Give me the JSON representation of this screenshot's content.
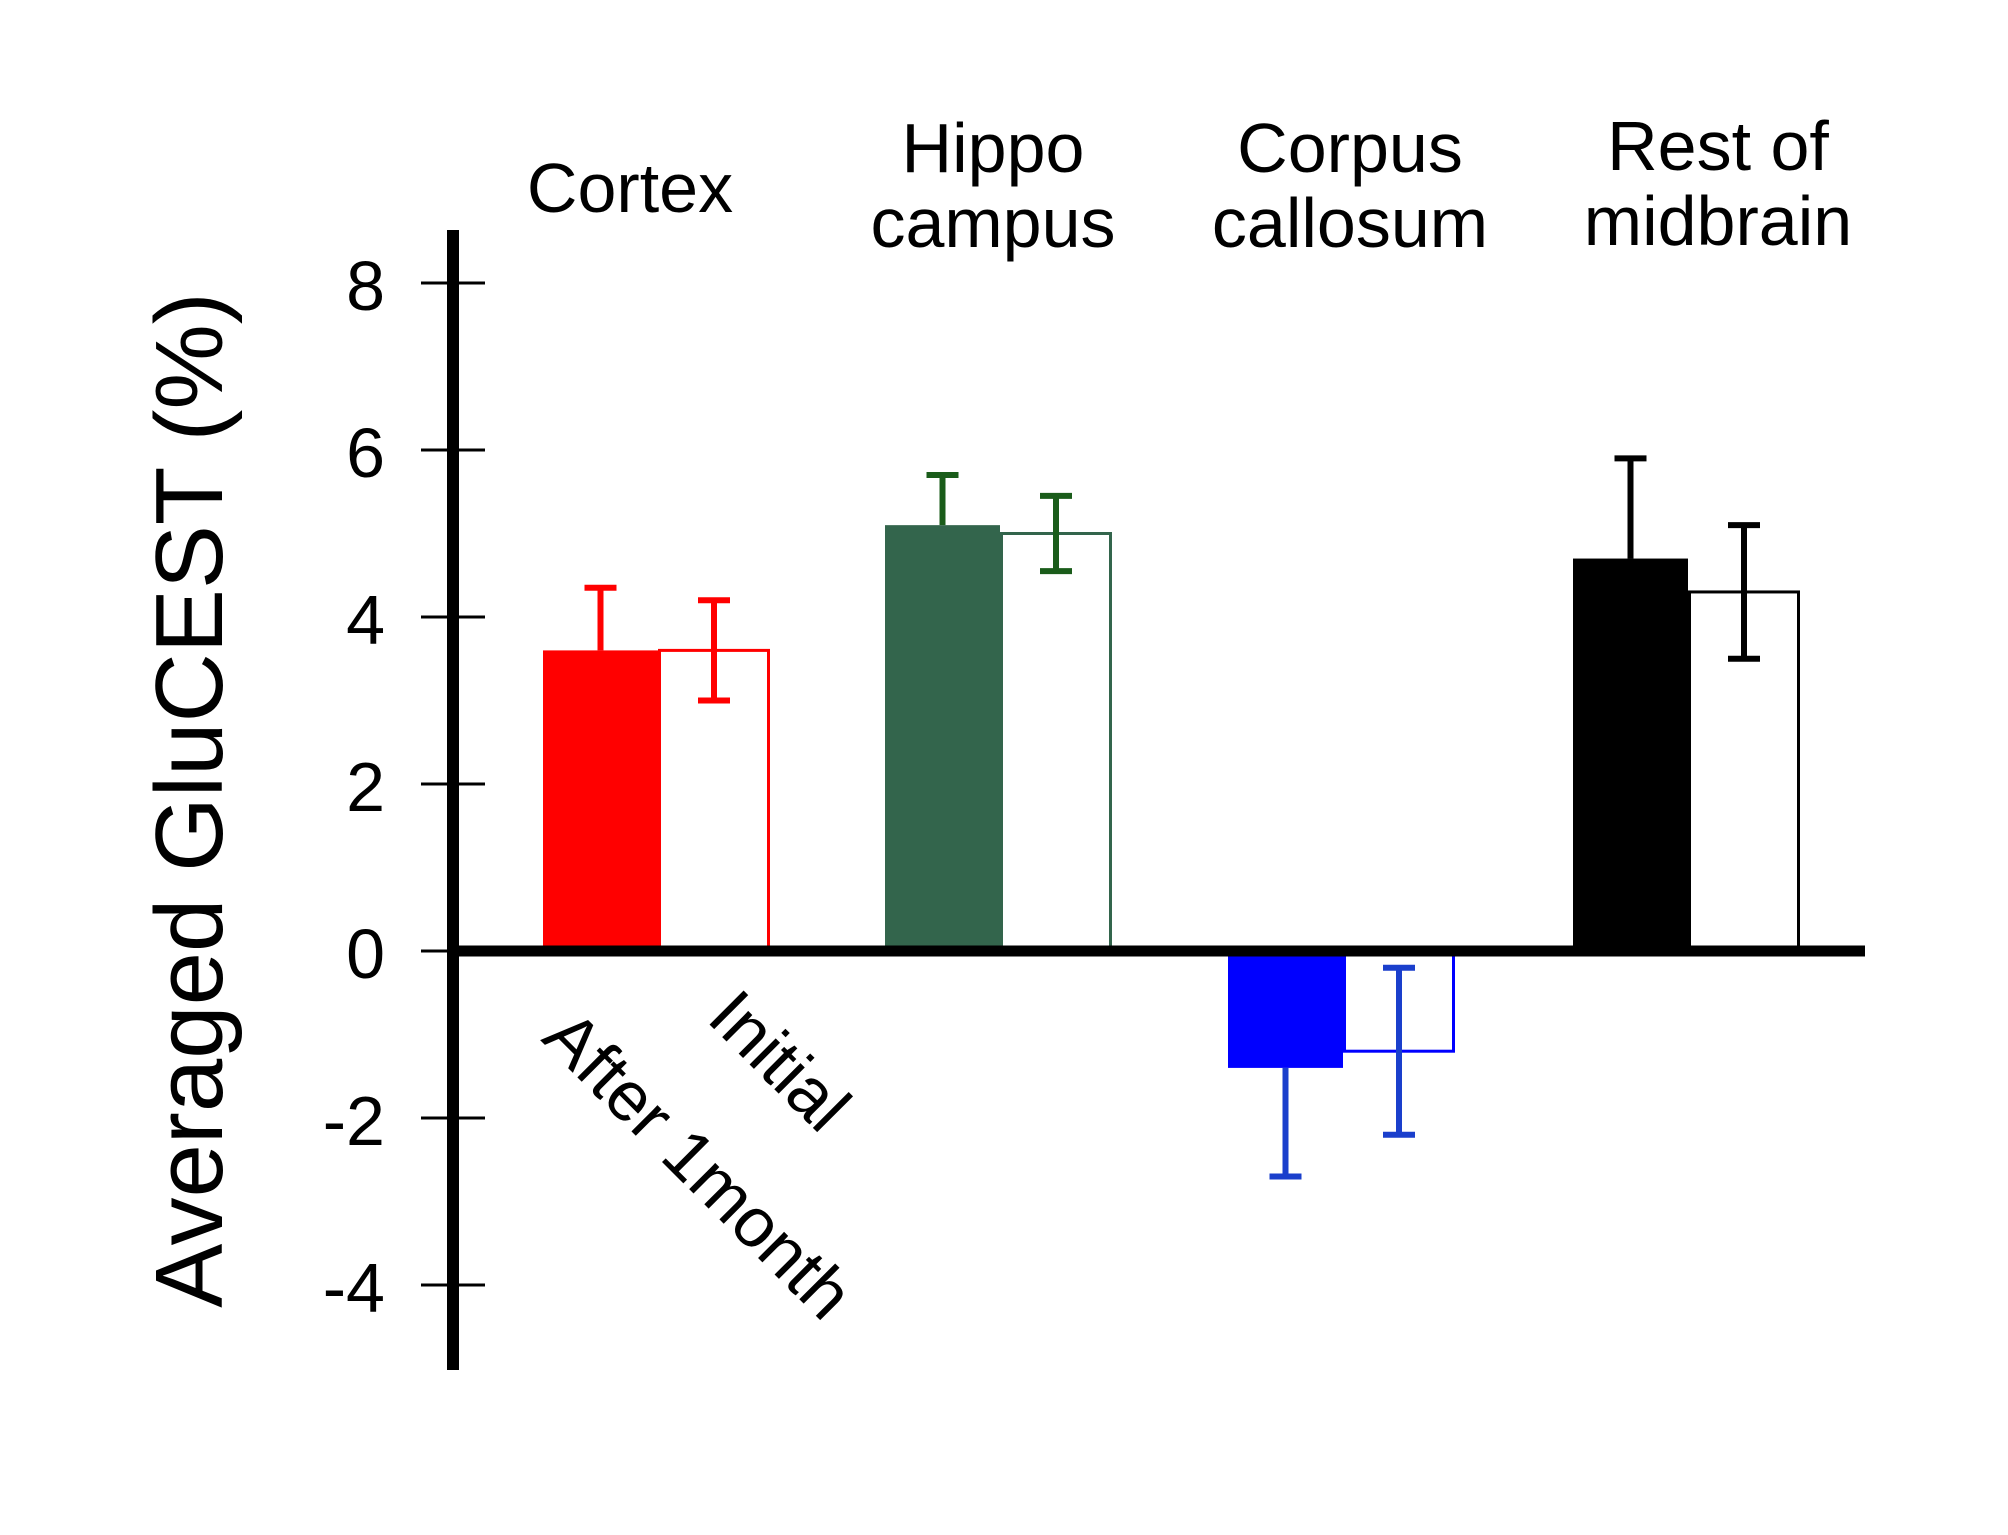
{
  "chart_data": {
    "type": "bar",
    "title": "",
    "xlabel": "",
    "ylabel": "Averaged GluCEST (%)",
    "ylim": [
      -5,
      8.5
    ],
    "yticks": [
      8,
      6,
      4,
      2,
      0,
      -2,
      -4
    ],
    "ytick_labels": [
      "8",
      "6",
      "4",
      "2",
      "0",
      "-2",
      "-4"
    ],
    "categories": [
      {
        "name": "Cortex",
        "lines": [
          "Cortex"
        ]
      },
      {
        "name": "Hippo campus",
        "lines": [
          "Hippo",
          "campus"
        ]
      },
      {
        "name": "Corpus callosum",
        "lines": [
          "Corpus",
          "callosum"
        ]
      },
      {
        "name": "Rest of midbrain",
        "lines": [
          "Rest of",
          "midbrain"
        ]
      }
    ],
    "series": [
      {
        "name": "After 1month",
        "values": [
          3.6,
          5.1,
          -1.4,
          4.7
        ],
        "errors": [
          0.75,
          0.6,
          1.3,
          1.2
        ],
        "fill": "solid"
      },
      {
        "name": "Initial",
        "values": [
          3.6,
          5.0,
          -1.2,
          4.3
        ],
        "errors": [
          0.6,
          0.45,
          1.0,
          0.8
        ],
        "fill": "open"
      }
    ],
    "colors": [
      "#ff0000",
      "#33654c",
      "#0000ff",
      "#000000"
    ],
    "error_colors": [
      "#ff0000",
      "#1a5c1a",
      "#1a3fcc",
      "#000000"
    ]
  }
}
